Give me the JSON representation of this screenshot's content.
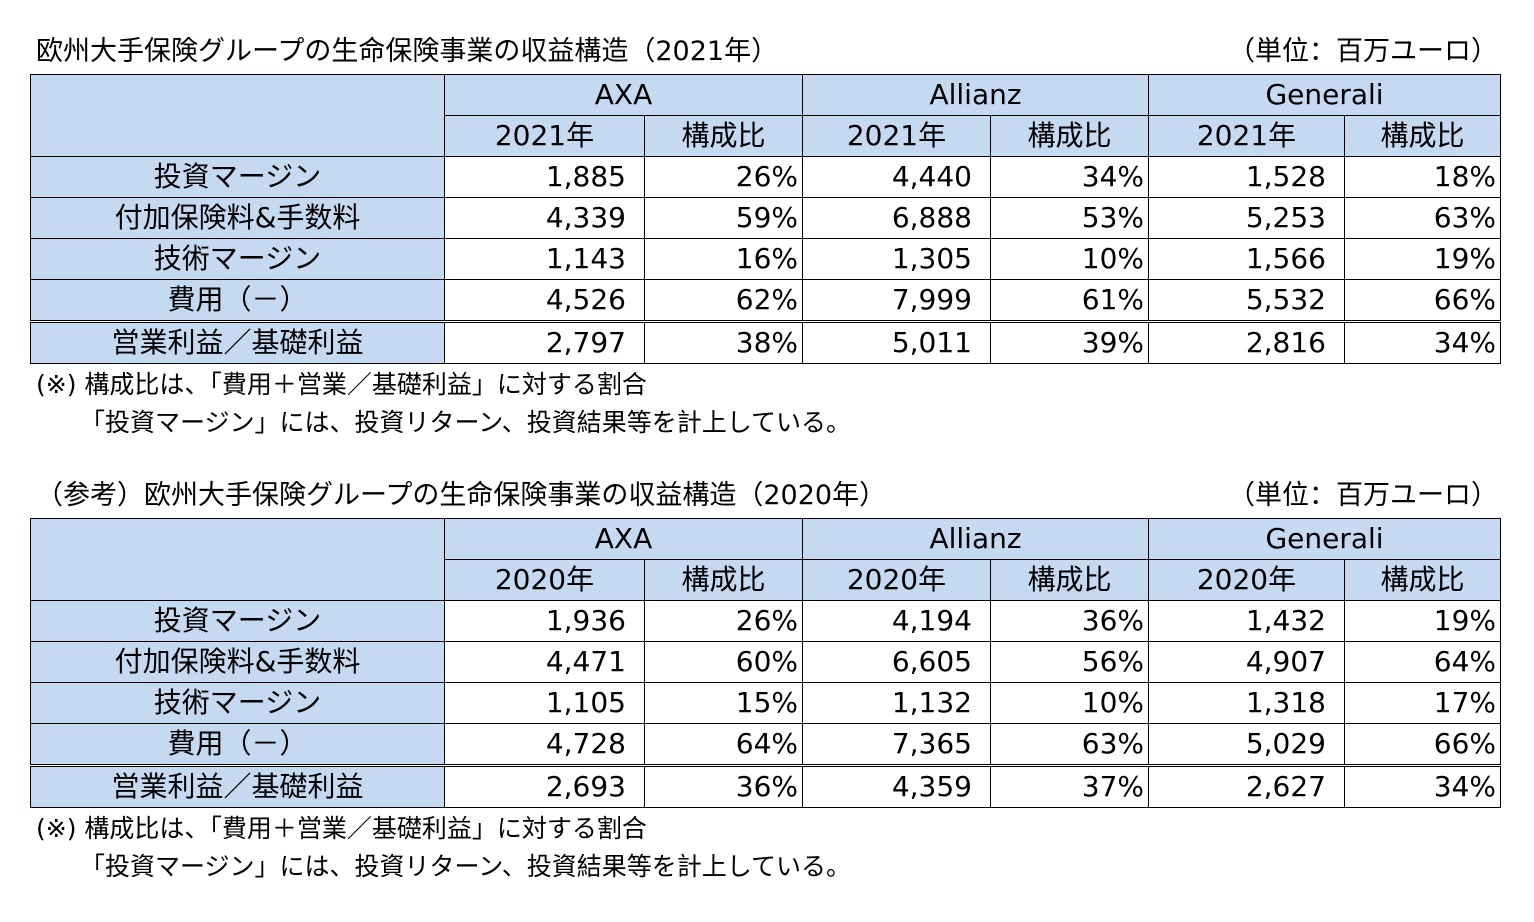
{
  "tables": [
    {
      "title": "欧州大手保険グループの生命保険事業の収益構造（2021年）",
      "unit": "（単位：百万ユーロ）",
      "companies": [
        "AXA",
        "Allianz",
        "Generali"
      ],
      "year_label": "2021年",
      "ratio_label": "構成比",
      "rows": [
        {
          "label": "投資マージン",
          "cells": [
            "1,885",
            "26%",
            "4,440",
            "34%",
            "1,528",
            "18%"
          ]
        },
        {
          "label": "付加保険料&手数料",
          "cells": [
            "4,339",
            "59%",
            "6,888",
            "53%",
            "5,253",
            "63%"
          ]
        },
        {
          "label": "技術マージン",
          "cells": [
            "1,143",
            "16%",
            "1,305",
            "10%",
            "1,566",
            "19%"
          ]
        },
        {
          "label": "費用（－）",
          "cells": [
            "4,526",
            "62%",
            "7,999",
            "61%",
            "5,532",
            "66%"
          ]
        },
        {
          "label": "営業利益／基礎利益",
          "cells": [
            "2,797",
            "38%",
            "5,011",
            "39%",
            "2,816",
            "34%"
          ]
        }
      ],
      "notes": [
        "(※) 構成比は、「費用＋営業／基礎利益」に対する割合",
        "「投資マージン」には、投資リターン、投資結果等を計上している。"
      ]
    },
    {
      "title": "（参考）欧州大手保険グループの生命保険事業の収益構造（2020年）",
      "unit": "（単位：百万ユーロ）",
      "companies": [
        "AXA",
        "Allianz",
        "Generali"
      ],
      "year_label": "2020年",
      "ratio_label": "構成比",
      "rows": [
        {
          "label": "投資マージン",
          "cells": [
            "1,936",
            "26%",
            "4,194",
            "36%",
            "1,432",
            "19%"
          ]
        },
        {
          "label": "付加保険料&手数料",
          "cells": [
            "4,471",
            "60%",
            "6,605",
            "56%",
            "4,907",
            "64%"
          ]
        },
        {
          "label": "技術マージン",
          "cells": [
            "1,105",
            "15%",
            "1,132",
            "10%",
            "1,318",
            "17%"
          ]
        },
        {
          "label": "費用（－）",
          "cells": [
            "4,728",
            "64%",
            "7,365",
            "63%",
            "5,029",
            "66%"
          ]
        },
        {
          "label": "営業利益／基礎利益",
          "cells": [
            "2,693",
            "36%",
            "4,359",
            "37%",
            "2,627",
            "34%"
          ]
        }
      ],
      "notes": [
        "(※) 構成比は、「費用＋営業／基礎利益」に対する割合",
        "「投資マージン」には、投資リターン、投資結果等を計上している。"
      ]
    }
  ],
  "colors": {
    "header_fill": "#c5d9f1",
    "border": "#000000"
  }
}
